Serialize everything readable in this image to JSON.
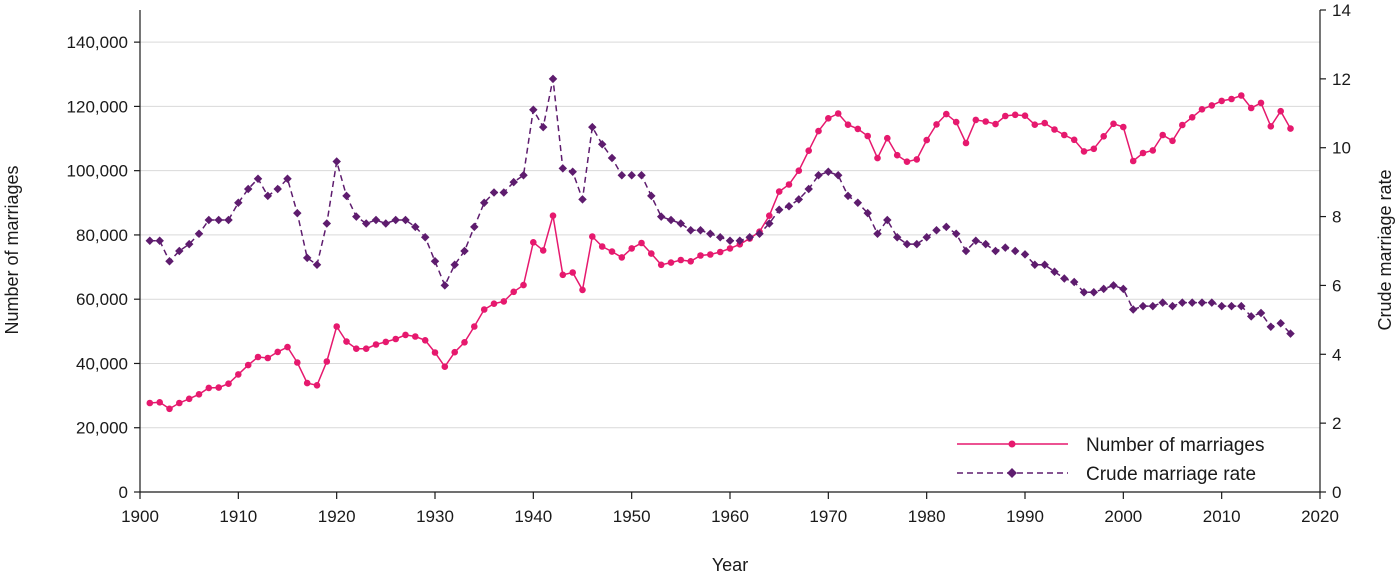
{
  "chart_data": {
    "type": "line",
    "xlabel": "Year",
    "ylabel_left": "Number of marriages",
    "ylabel_right": "Crude marriage rate",
    "xlim": [
      1900,
      2020
    ],
    "ylim_left": [
      0,
      150000
    ],
    "ylim_right": [
      0,
      14
    ],
    "x_ticks": [
      "1900",
      "1910",
      "1920",
      "1930",
      "1940",
      "1950",
      "1960",
      "1970",
      "1980",
      "1990",
      "2000",
      "2010",
      "2020"
    ],
    "y_left_ticks": [
      "0",
      "20,000",
      "40,000",
      "60,000",
      "80,000",
      "100,000",
      "120,000",
      "140,000"
    ],
    "y_right_ticks": [
      "0",
      "2",
      "4",
      "6",
      "8",
      "10",
      "12",
      "14"
    ],
    "grid": "horizontal",
    "legend_position": "bottom-right",
    "x": [
      1901,
      1902,
      1903,
      1904,
      1905,
      1906,
      1907,
      1908,
      1909,
      1910,
      1911,
      1912,
      1913,
      1914,
      1915,
      1916,
      1917,
      1918,
      1919,
      1920,
      1921,
      1922,
      1923,
      1924,
      1925,
      1926,
      1927,
      1928,
      1929,
      1930,
      1931,
      1932,
      1933,
      1934,
      1935,
      1936,
      1937,
      1938,
      1939,
      1940,
      1941,
      1942,
      1943,
      1944,
      1945,
      1946,
      1947,
      1948,
      1949,
      1950,
      1951,
      1952,
      1953,
      1954,
      1955,
      1956,
      1957,
      1958,
      1959,
      1960,
      1961,
      1962,
      1963,
      1964,
      1965,
      1966,
      1967,
      1968,
      1969,
      1970,
      1971,
      1972,
      1973,
      1974,
      1975,
      1976,
      1977,
      1978,
      1979,
      1980,
      1981,
      1982,
      1983,
      1984,
      1985,
      1986,
      1987,
      1988,
      1989,
      1990,
      1991,
      1992,
      1993,
      1994,
      1995,
      1996,
      1997,
      1998,
      1999,
      2000,
      2001,
      2002,
      2003,
      2004,
      2005,
      2006,
      2007,
      2008,
      2009,
      2010,
      2011,
      2012,
      2013,
      2014,
      2015,
      2016,
      2017
    ],
    "series": [
      {
        "name": "Number of marriages",
        "axis": "left",
        "color": "#e6196e",
        "style": "solid",
        "marker": "circle",
        "values": [
          27700,
          27900,
          25900,
          27700,
          29000,
          30400,
          32400,
          32500,
          33700,
          36600,
          39500,
          42000,
          41700,
          43600,
          45100,
          40300,
          33900,
          33200,
          40600,
          51500,
          46800,
          44600,
          44600,
          45900,
          46700,
          47600,
          48900,
          48400,
          47200,
          43400,
          39000,
          43500,
          46600,
          51500,
          56800,
          58600,
          59300,
          62300,
          64400,
          77700,
          75200,
          86000,
          67600,
          68300,
          62900,
          79500,
          76400,
          74800,
          73000,
          75800,
          77500,
          74200,
          70700,
          71400,
          72200,
          71800,
          73600,
          73900,
          74700,
          75800,
          77100,
          78900,
          81000,
          86000,
          93500,
          95700,
          100000,
          106200,
          112300,
          116300,
          117800,
          114300,
          113000,
          110800,
          103900,
          110100,
          104800,
          102800,
          103500,
          109500,
          114400,
          117600,
          115100,
          108600,
          115800,
          115300,
          114500,
          117000,
          117400,
          117100,
          114300,
          114800,
          112800,
          111100,
          109600,
          106000,
          106800,
          110700,
          114600,
          113600,
          103000,
          105500,
          106300,
          111100,
          109300,
          114200,
          116600,
          119100,
          120300,
          121700,
          122300,
          123400,
          119500,
          121100,
          113800,
          118500,
          113100
        ]
      },
      {
        "name": "Crude marriage rate",
        "axis": "right",
        "color": "#5e1c6e",
        "style": "dashed",
        "marker": "diamond",
        "values": [
          7.3,
          7.3,
          6.7,
          7.0,
          7.2,
          7.5,
          7.9,
          7.9,
          7.9,
          8.4,
          8.8,
          9.1,
          8.6,
          8.8,
          9.1,
          8.1,
          6.8,
          6.6,
          7.8,
          9.6,
          8.6,
          8.0,
          7.8,
          7.9,
          7.8,
          7.9,
          7.9,
          7.7,
          7.4,
          6.7,
          6.0,
          6.6,
          7.0,
          7.7,
          8.4,
          8.7,
          8.7,
          9.0,
          9.2,
          11.1,
          10.6,
          12.0,
          9.4,
          9.3,
          8.5,
          10.6,
          10.1,
          9.7,
          9.2,
          9.2,
          9.2,
          8.6,
          8.0,
          7.9,
          7.8,
          7.6,
          7.6,
          7.5,
          7.4,
          7.3,
          7.3,
          7.4,
          7.5,
          7.8,
          8.2,
          8.3,
          8.5,
          8.8,
          9.2,
          9.3,
          9.2,
          8.6,
          8.4,
          8.1,
          7.5,
          7.9,
          7.4,
          7.2,
          7.2,
          7.4,
          7.6,
          7.7,
          7.5,
          7.0,
          7.3,
          7.2,
          7.0,
          7.1,
          7.0,
          6.9,
          6.6,
          6.6,
          6.4,
          6.2,
          6.1,
          5.8,
          5.8,
          5.9,
          6.0,
          5.9,
          5.3,
          5.4,
          5.4,
          5.5,
          5.4,
          5.5,
          5.5,
          5.5,
          5.5,
          5.4,
          5.4,
          5.4,
          5.1,
          5.2,
          4.8,
          4.9,
          4.6
        ]
      }
    ]
  }
}
